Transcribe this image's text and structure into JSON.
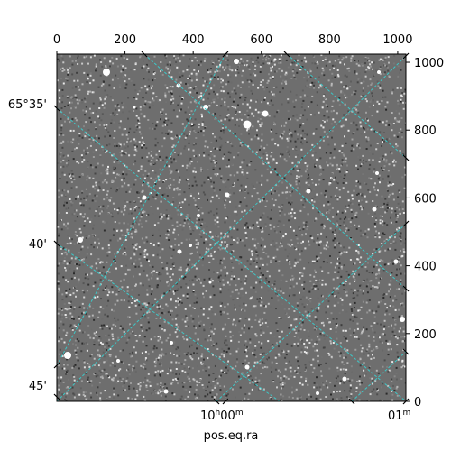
{
  "chart_data": {
    "type": "image",
    "colormap": "gray",
    "xlabel": "pos.eq.ra",
    "ylabel": "",
    "pixel_axes": {
      "x_ticks": [
        0,
        200,
        400,
        600,
        800,
        1000
      ],
      "y_ticks": [
        0,
        200,
        400,
        600,
        800,
        1000
      ],
      "xlim": [
        0,
        1024
      ],
      "ylim": [
        0,
        1024
      ]
    },
    "ra_ticks": [
      {
        "main": "10",
        "sup1": "h",
        "rest": "00",
        "sup2": "m"
      },
      {
        "main": "01",
        "sup1": "m",
        "rest": "",
        "sup2": ""
      }
    ],
    "dec_ticks": [
      "65°35'",
      "40'",
      "45'"
    ],
    "grid": true,
    "grid_color": "#3cc8c8",
    "frame_color": "#000000"
  }
}
